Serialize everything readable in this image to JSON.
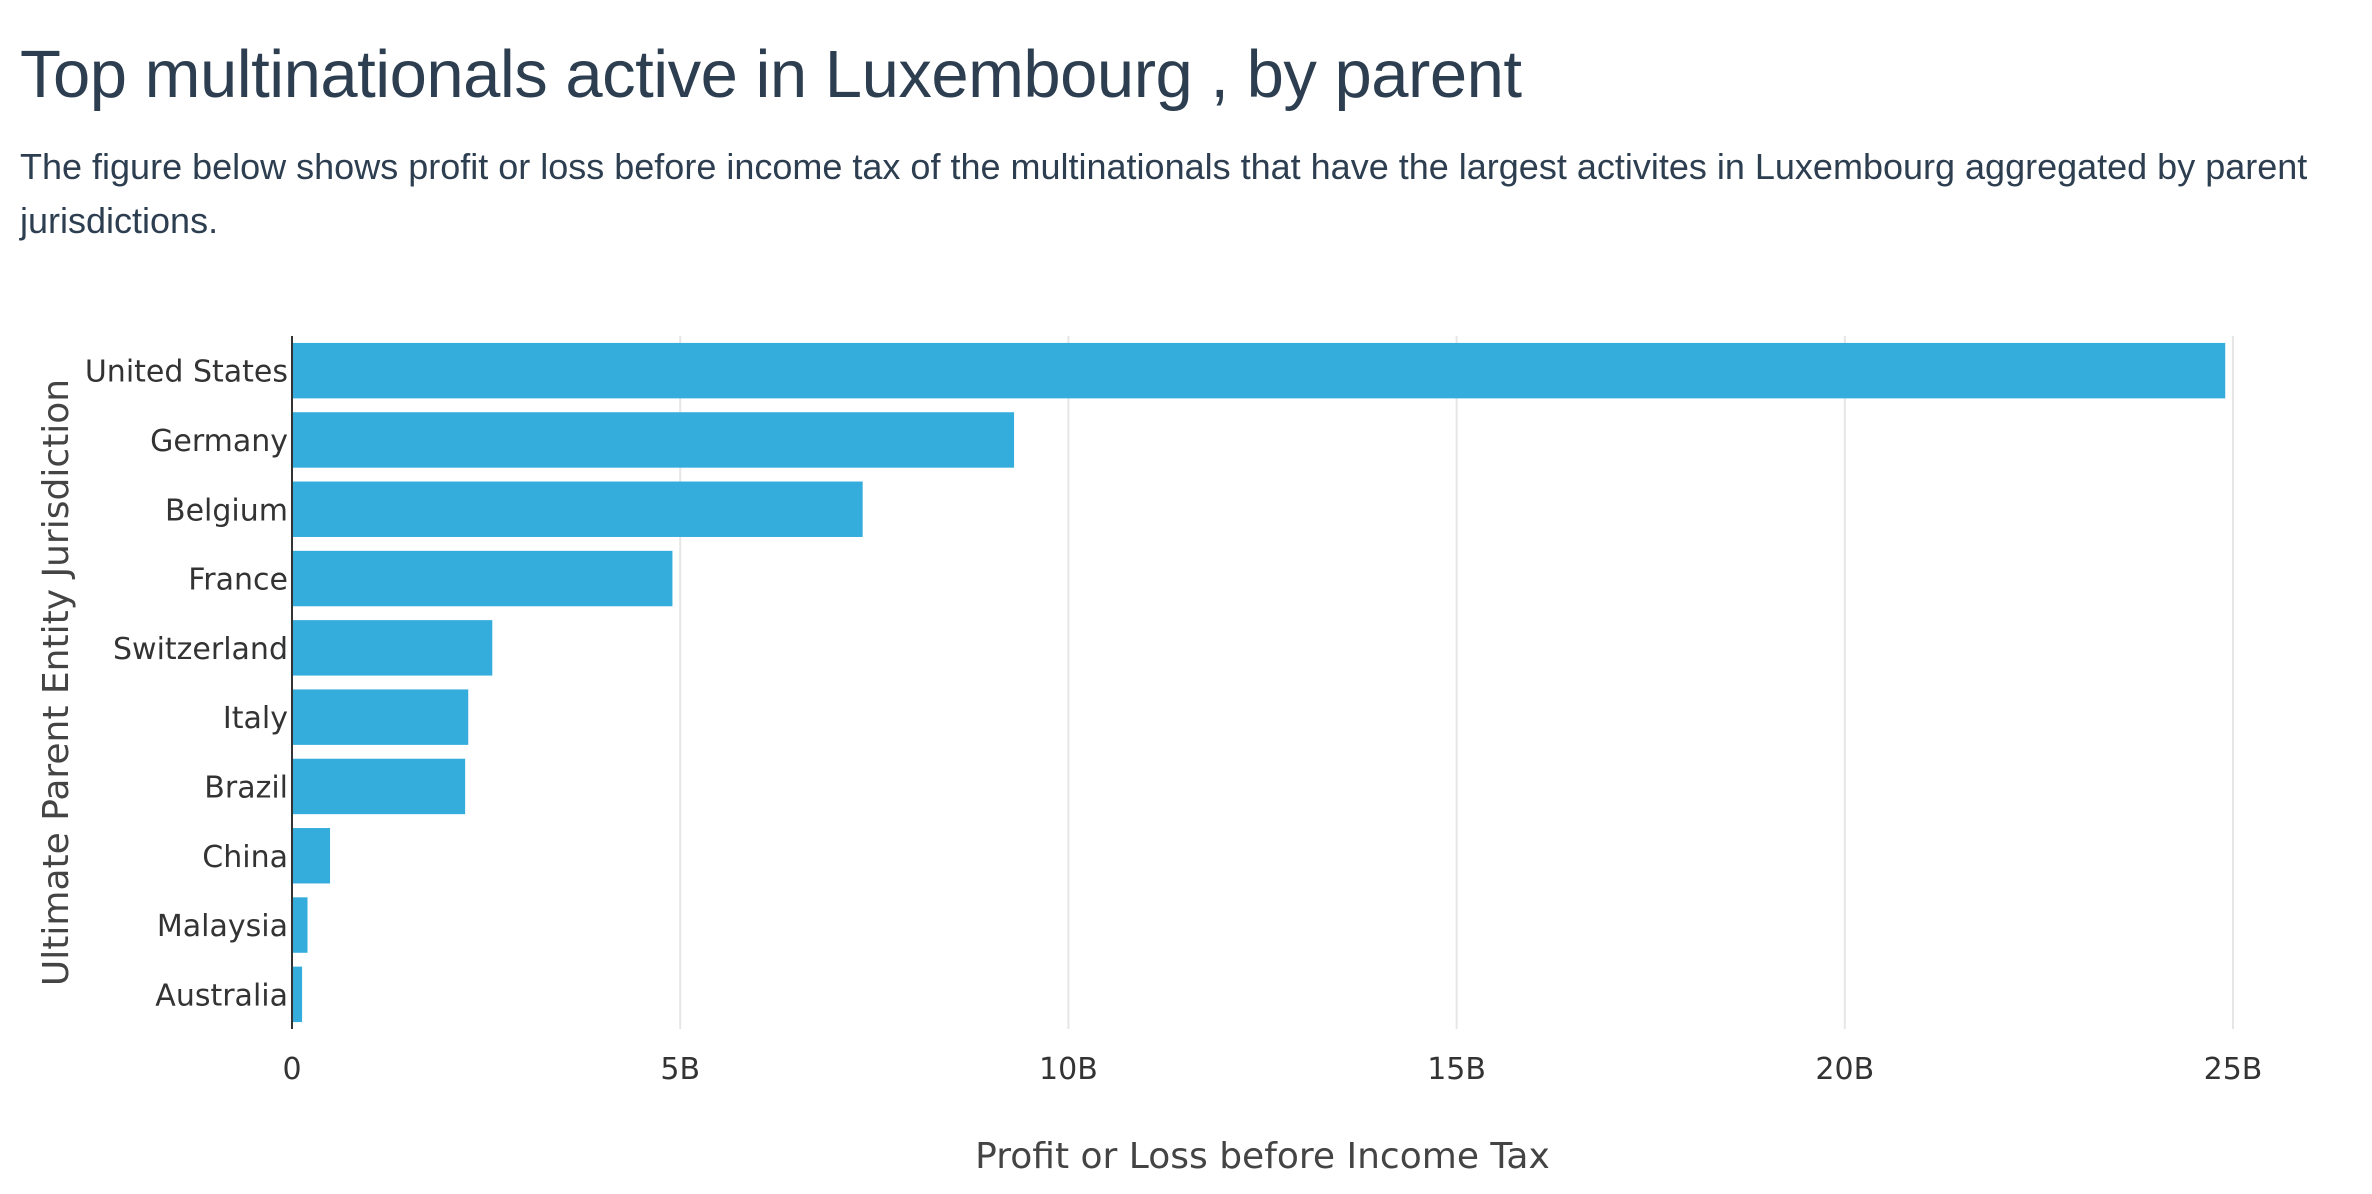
{
  "header": {
    "title": "Top multinationals active in Luxembourg , by parent",
    "subtitle": "The figure below shows profit or loss before income tax of the multinationals that have the largest activites in Luxembourg aggregated by parent jurisdictions."
  },
  "colors": {
    "bar": "#34acdc",
    "grid": "#e6e6e6",
    "axis_line": "#333333"
  },
  "chart_data": {
    "type": "bar",
    "orientation": "horizontal",
    "title": "Top multinationals active in Luxembourg , by parent",
    "xlabel": "Profit or Loss before Income Tax",
    "ylabel": "Ultimate Parent Entity Jurisdiction",
    "categories": [
      "United States",
      "Germany",
      "Belgium",
      "France",
      "Switzerland",
      "Italy",
      "Brazil",
      "China",
      "Malaysia",
      "Australia"
    ],
    "values": [
      24900000000,
      9300000000,
      7350000000,
      4900000000,
      2580000000,
      2270000000,
      2230000000,
      490000000,
      200000000,
      130000000
    ],
    "xlim": [
      0,
      25000000000
    ],
    "xticks": [
      0,
      5000000000,
      10000000000,
      15000000000,
      20000000000,
      25000000000
    ],
    "xtick_labels": [
      "0",
      "5B",
      "10B",
      "15B",
      "20B",
      "25B"
    ],
    "grid": true
  }
}
